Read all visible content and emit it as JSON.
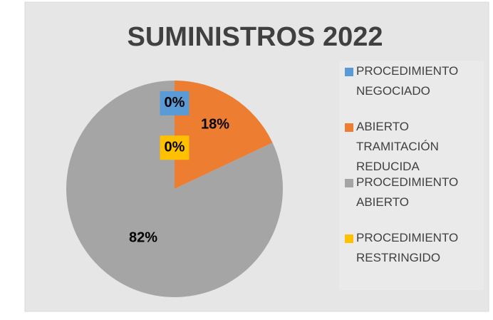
{
  "chart_data": {
    "type": "pie",
    "title": "SUMINISTROS 2022",
    "categories": [
      "PROCEDIMIENTO NEGOCIADO",
      "ABIERTO TRAMITACIÓN REDUCIDA",
      "PROCEDIMIENTO ABIERTO",
      "PROCEDIMIENTO RESTRINGIDO"
    ],
    "values": [
      0,
      18,
      82,
      0
    ],
    "value_labels": [
      "0%",
      "18%",
      "82%",
      "0%"
    ],
    "colors": [
      "#5b9bd5",
      "#ed7d31",
      "#a5a5a5",
      "#ffc000"
    ],
    "legend": "right"
  }
}
